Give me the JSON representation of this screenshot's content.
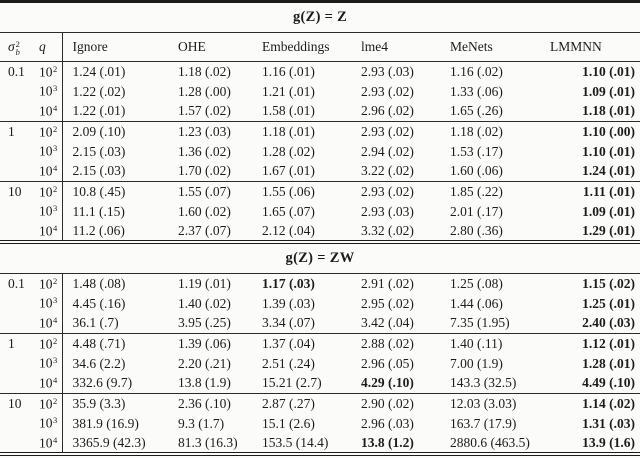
{
  "header": {
    "sigma_symbol": "σ",
    "sigma_sup": "2",
    "sigma_sub": "b",
    "q_label": "q",
    "methods": [
      "Ignore",
      "OHE",
      "Embeddings",
      "lme4",
      "MeNets",
      "LMMNN"
    ]
  },
  "sections": [
    {
      "title": "g(Z) = Z",
      "groups": [
        {
          "sigma": "0.1",
          "rows": [
            {
              "q_base": "10",
              "q_exp": "2",
              "values": [
                "1.24 (.01)",
                "1.18 (.02)",
                "1.16 (.01)",
                "2.93 (.03)",
                "1.16 (.02)",
                "1.10 (.01)"
              ],
              "bold": [
                5
              ]
            },
            {
              "q_base": "10",
              "q_exp": "3",
              "values": [
                "1.22 (.02)",
                "1.28 (.00)",
                "1.21 (.01)",
                "2.93 (.02)",
                "1.33 (.06)",
                "1.09 (.01)"
              ],
              "bold": [
                5
              ]
            },
            {
              "q_base": "10",
              "q_exp": "4",
              "values": [
                "1.22 (.01)",
                "1.57 (.02)",
                "1.58 (.01)",
                "2.96 (.02)",
                "1.65 (.26)",
                "1.18 (.01)"
              ],
              "bold": [
                5
              ]
            }
          ]
        },
        {
          "sigma": "1",
          "rows": [
            {
              "q_base": "10",
              "q_exp": "2",
              "values": [
                "2.09 (.10)",
                "1.23 (.03)",
                "1.18 (.01)",
                "2.93 (.02)",
                "1.18 (.02)",
                "1.10 (.00)"
              ],
              "bold": [
                5
              ]
            },
            {
              "q_base": "10",
              "q_exp": "3",
              "values": [
                "2.15 (.03)",
                "1.36 (.02)",
                "1.28 (.02)",
                "2.94 (.02)",
                "1.53 (.17)",
                "1.10 (.01)"
              ],
              "bold": [
                5
              ]
            },
            {
              "q_base": "10",
              "q_exp": "4",
              "values": [
                "2.15 (.03)",
                "1.70 (.02)",
                "1.67 (.01)",
                "3.22 (.02)",
                "1.60 (.06)",
                "1.24 (.01)"
              ],
              "bold": [
                5
              ]
            }
          ]
        },
        {
          "sigma": "10",
          "rows": [
            {
              "q_base": "10",
              "q_exp": "2",
              "values": [
                "10.8 (.45)",
                "1.55 (.07)",
                "1.55 (.06)",
                "2.93 (.02)",
                "1.85 (.22)",
                "1.11 (.01)"
              ],
              "bold": [
                5
              ]
            },
            {
              "q_base": "10",
              "q_exp": "3",
              "values": [
                "11.1 (.15)",
                "1.60 (.02)",
                "1.65 (.07)",
                "2.93 (.03)",
                "2.01 (.17)",
                "1.09 (.01)"
              ],
              "bold": [
                5
              ]
            },
            {
              "q_base": "10",
              "q_exp": "4",
              "values": [
                "11.2 (.06)",
                "2.37 (.07)",
                "2.12 (.04)",
                "3.32 (.02)",
                "2.80 (.36)",
                "1.29 (.01)"
              ],
              "bold": [
                5
              ]
            }
          ]
        }
      ]
    },
    {
      "title": "g(Z) = ZW",
      "groups": [
        {
          "sigma": "0.1",
          "rows": [
            {
              "q_base": "10",
              "q_exp": "2",
              "values": [
                "1.48 (.08)",
                "1.19 (.01)",
                "1.17 (.03)",
                "2.91 (.02)",
                "1.25 (.08)",
                "1.15 (.02)"
              ],
              "bold": [
                2,
                5
              ]
            },
            {
              "q_base": "10",
              "q_exp": "3",
              "values": [
                "4.45 (.16)",
                "1.40 (.02)",
                "1.39 (.03)",
                "2.95 (.02)",
                "1.44 (.06)",
                "1.25 (.01)"
              ],
              "bold": [
                5
              ]
            },
            {
              "q_base": "10",
              "q_exp": "4",
              "values": [
                "36.1 (.7)",
                "3.95 (.25)",
                "3.34 (.07)",
                "3.42 (.04)",
                "7.35 (1.95)",
                "2.40 (.03)"
              ],
              "bold": [
                5
              ]
            }
          ]
        },
        {
          "sigma": "1",
          "rows": [
            {
              "q_base": "10",
              "q_exp": "2",
              "values": [
                "4.48 (.71)",
                "1.39 (.06)",
                "1.37 (.04)",
                "2.88 (.02)",
                "1.40 (.11)",
                "1.12 (.01)"
              ],
              "bold": [
                5
              ]
            },
            {
              "q_base": "10",
              "q_exp": "3",
              "values": [
                "34.6 (2.2)",
                "2.20 (.21)",
                "2.51 (.24)",
                "2.96 (.05)",
                "7.00 (1.9)",
                "1.28 (.01)"
              ],
              "bold": [
                5
              ]
            },
            {
              "q_base": "10",
              "q_exp": "4",
              "values": [
                "332.6 (9.7)",
                "13.8 (1.9)",
                "15.21 (2.7)",
                "4.29 (.10)",
                "143.3 (32.5)",
                "4.49 (.10)"
              ],
              "bold": [
                3,
                5
              ]
            }
          ]
        },
        {
          "sigma": "10",
          "rows": [
            {
              "q_base": "10",
              "q_exp": "2",
              "values": [
                "35.9 (3.3)",
                "2.36 (.10)",
                "2.87 (.27)",
                "2.90 (.02)",
                "12.03 (3.03)",
                "1.14 (.02)"
              ],
              "bold": [
                5
              ]
            },
            {
              "q_base": "10",
              "q_exp": "3",
              "values": [
                "381.9 (16.9)",
                "9.3 (1.7)",
                "15.1 (2.6)",
                "2.96 (.03)",
                "163.7 (17.9)",
                "1.31 (.03)"
              ],
              "bold": [
                5
              ]
            },
            {
              "q_base": "10",
              "q_exp": "4",
              "values": [
                "3365.9 (42.3)",
                "81.3 (16.3)",
                "153.5 (14.4)",
                "13.8 (1.2)",
                "2880.6 (463.5)",
                "13.9 (1.6)"
              ],
              "bold": [
                3,
                5
              ]
            }
          ]
        }
      ]
    }
  ]
}
